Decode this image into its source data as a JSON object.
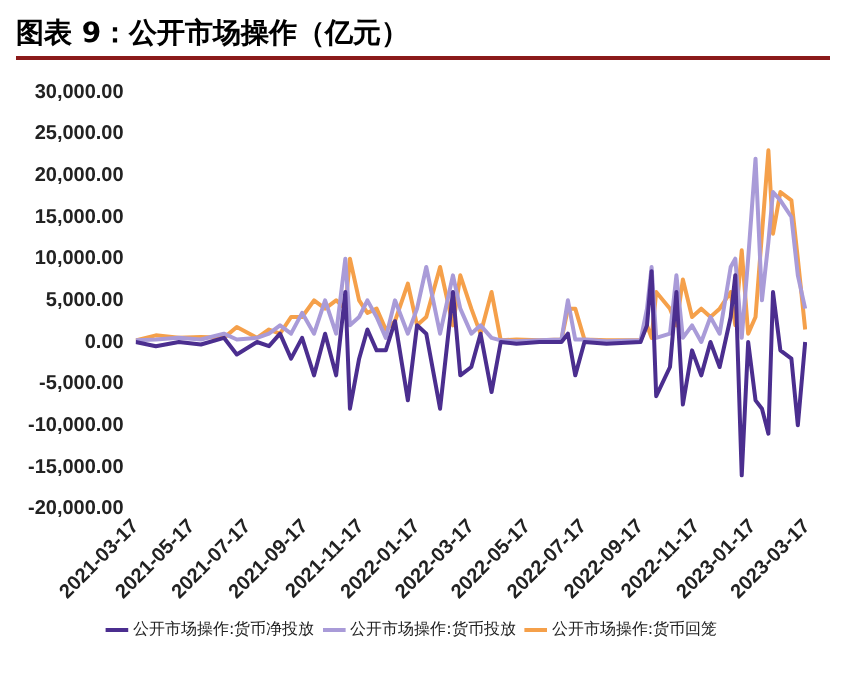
{
  "chart_data": {
    "type": "line",
    "title": "图表 9：公开市场操作（亿元）",
    "x": [
      "2021-03-17",
      "2021-04-08",
      "2021-05-03",
      "2021-05-27",
      "2021-06-21",
      "2021-07-05",
      "2021-07-27",
      "2021-08-09",
      "2021-08-21",
      "2021-09-02",
      "2021-09-14",
      "2021-09-27",
      "2021-10-09",
      "2021-10-21",
      "2021-10-31",
      "2021-11-05",
      "2021-11-15",
      "2021-11-24",
      "2021-12-04",
      "2021-12-14",
      "2021-12-24",
      "2022-01-07",
      "2022-01-17",
      "2022-01-27",
      "2022-02-11",
      "2022-02-25",
      "2022-03-05",
      "2022-03-17",
      "2022-03-27",
      "2022-04-08",
      "2022-04-18",
      "2022-05-05",
      "2022-05-30",
      "2022-06-23",
      "2022-06-30",
      "2022-07-08",
      "2022-07-18",
      "2022-08-11",
      "2022-09-17",
      "2022-09-24",
      "2022-09-29",
      "2022-10-04",
      "2022-10-19",
      "2022-10-26",
      "2022-11-02",
      "2022-11-12",
      "2022-11-22",
      "2022-12-02",
      "2022-12-12",
      "2022-12-24",
      "2022-12-29",
      "2023-01-05",
      "2023-01-12",
      "2023-01-20",
      "2023-01-27",
      "2023-02-03",
      "2023-02-08",
      "2023-02-16",
      "2023-02-28",
      "2023-03-07",
      "2023-03-15"
    ],
    "series": [
      {
        "name": "公开市场操作:货币净投放",
        "color": "#4b2e8f",
        "values": [
          0,
          -500,
          0,
          -300,
          500,
          -1500,
          0,
          -500,
          1000,
          -2000,
          500,
          -4000,
          1000,
          -4000,
          6000,
          -8000,
          -2000,
          1500,
          -1000,
          -1000,
          2500,
          -7000,
          2000,
          1000,
          -8000,
          6000,
          -4000,
          -3000,
          1000,
          -6000,
          0,
          -200,
          0,
          0,
          1000,
          -4000,
          0,
          -200,
          0,
          2000,
          8500,
          -6500,
          -3000,
          6000,
          -7500,
          -1000,
          -4000,
          0,
          -3000,
          3000,
          8000,
          -16000,
          0,
          -7000,
          -8000,
          -11000,
          6000,
          -1000,
          -2000,
          -10000,
          0
        ]
      },
      {
        "name": "公开市场操作:货币投放",
        "color": "#a99bd8",
        "values": [
          200,
          300,
          500,
          300,
          1000,
          300,
          500,
          1000,
          2000,
          1000,
          3500,
          1000,
          5000,
          1000,
          10000,
          2000,
          3000,
          5000,
          3000,
          500,
          5000,
          1000,
          4000,
          9000,
          1000,
          8000,
          4000,
          1000,
          2000,
          500,
          200,
          100,
          200,
          300,
          5000,
          300,
          300,
          100,
          200,
          4000,
          9000,
          500,
          1000,
          8000,
          500,
          2000,
          0,
          3000,
          1000,
          9000,
          10000,
          500,
          10000,
          22000,
          5000,
          12000,
          18000,
          17000,
          15000,
          8000,
          4000
        ]
      },
      {
        "name": "公开市场操作:货币回笼",
        "color": "#f5a04a",
        "values": [
          200,
          800,
          500,
          600,
          500,
          1800,
          500,
          1500,
          1000,
          3000,
          3000,
          5000,
          4000,
          5000,
          4000,
          10000,
          5000,
          3500,
          4000,
          1500,
          2500,
          7000,
          2000,
          3000,
          9000,
          2000,
          8000,
          4000,
          1000,
          6000,
          200,
          300,
          200,
          300,
          4000,
          4000,
          300,
          200,
          200,
          2000,
          500,
          6000,
          4000,
          2000,
          7500,
          3000,
          4000,
          3000,
          4000,
          6000,
          2000,
          11000,
          1000,
          3000,
          13000,
          23000,
          13000,
          18000,
          17000,
          10000,
          1500
        ]
      }
    ],
    "xlim": [
      "2021-03-17",
      "2023-03-17"
    ],
    "xticks": [
      {
        "value": "2021-03-17",
        "label": "2021-03-17"
      },
      {
        "value": "2021-05-17",
        "label": "2021-05-17"
      },
      {
        "value": "2021-07-17",
        "label": "2021-07-17"
      },
      {
        "value": "2021-09-17",
        "label": "2021-09-17"
      },
      {
        "value": "2021-11-17",
        "label": "2021-11-17"
      },
      {
        "value": "2022-01-17",
        "label": "2022-01-17"
      },
      {
        "value": "2022-03-17",
        "label": "2022-03-17"
      },
      {
        "value": "2022-05-17",
        "label": "2022-05-17"
      },
      {
        "value": "2022-07-17",
        "label": "2022-07-17"
      },
      {
        "value": "2022-09-17",
        "label": "2022-09-17"
      },
      {
        "value": "2022-11-17",
        "label": "2022-11-17"
      },
      {
        "value": "2023-01-17",
        "label": "2023-01-17"
      },
      {
        "value": "2023-03-17",
        "label": "2023-03-17"
      }
    ],
    "ylim": [
      -20000,
      30000
    ],
    "yticks": [
      {
        "value": -20000,
        "label": "-20,000.00"
      },
      {
        "value": -15000,
        "label": "-15,000.00"
      },
      {
        "value": -10000,
        "label": "-10,000.00"
      },
      {
        "value": -5000,
        "label": "-5,000.00"
      },
      {
        "value": 0,
        "label": "0.00"
      },
      {
        "value": 5000,
        "label": "5,000.00"
      },
      {
        "value": 10000,
        "label": "10,000.00"
      },
      {
        "value": 15000,
        "label": "15,000.00"
      },
      {
        "value": 20000,
        "label": "20,000.00"
      },
      {
        "value": 25000,
        "label": "25,000.00"
      },
      {
        "value": 30000,
        "label": "30,000.00"
      }
    ],
    "grid": false,
    "legend": "bottom",
    "marker": "none",
    "line_style": "solid"
  }
}
